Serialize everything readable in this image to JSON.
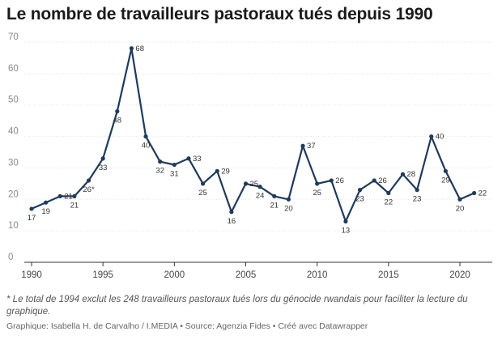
{
  "title": "Le nombre de travailleurs pastoraux tués depuis 1990",
  "note": "* Le total de 1994 exclut les 248 travailleurs pastoraux tués lors du génocide rwandais pour faciliter la lecture du graphique.",
  "credits": "Graphique: Isabella H. de Carvalho / I.MEDIA • Source: Agenzia Fides • Créé avec Datawrapper",
  "colors": {
    "line": "#1f3a5c",
    "grid": "#e6e6e6"
  },
  "chart_data": {
    "type": "line",
    "title": "Le nombre de travailleurs pastoraux tués depuis 1990",
    "xlabel": "",
    "ylabel": "",
    "xlim": [
      1990,
      2021
    ],
    "ylim": [
      0,
      70
    ],
    "grid": true,
    "x_ticks": [
      1990,
      1995,
      2000,
      2005,
      2010,
      2015,
      2020
    ],
    "y_ticks": [
      0,
      10,
      20,
      30,
      40,
      50,
      60,
      70
    ],
    "series": [
      {
        "x": [
          1990,
          1991,
          1992,
          1993,
          1994,
          1995,
          1996,
          1997,
          1998,
          1999,
          2000,
          2001,
          2002,
          2003,
          2004,
          2005,
          2006,
          2007,
          2008,
          2009,
          2010,
          2011,
          2012,
          2013,
          2014,
          2015,
          2016,
          2017,
          2018,
          2019,
          2020,
          2021
        ],
        "values": [
          17,
          19,
          21,
          21,
          26,
          33,
          48,
          68,
          40,
          32,
          31,
          33,
          25,
          29,
          16,
          25,
          24,
          21,
          20,
          37,
          25,
          26,
          13,
          23,
          26,
          22,
          28,
          23,
          40,
          29,
          20,
          22
        ],
        "labels": [
          "17",
          "19",
          "21",
          "21",
          "26*",
          "33",
          "48",
          "68",
          "40",
          "32",
          "31",
          "33",
          "25",
          "29",
          "16",
          "25",
          "24",
          "21",
          "20",
          "37",
          "25",
          "26",
          "13",
          "23",
          "26",
          "22",
          "28",
          "23",
          "40",
          "29",
          "20",
          "22"
        ]
      }
    ]
  }
}
